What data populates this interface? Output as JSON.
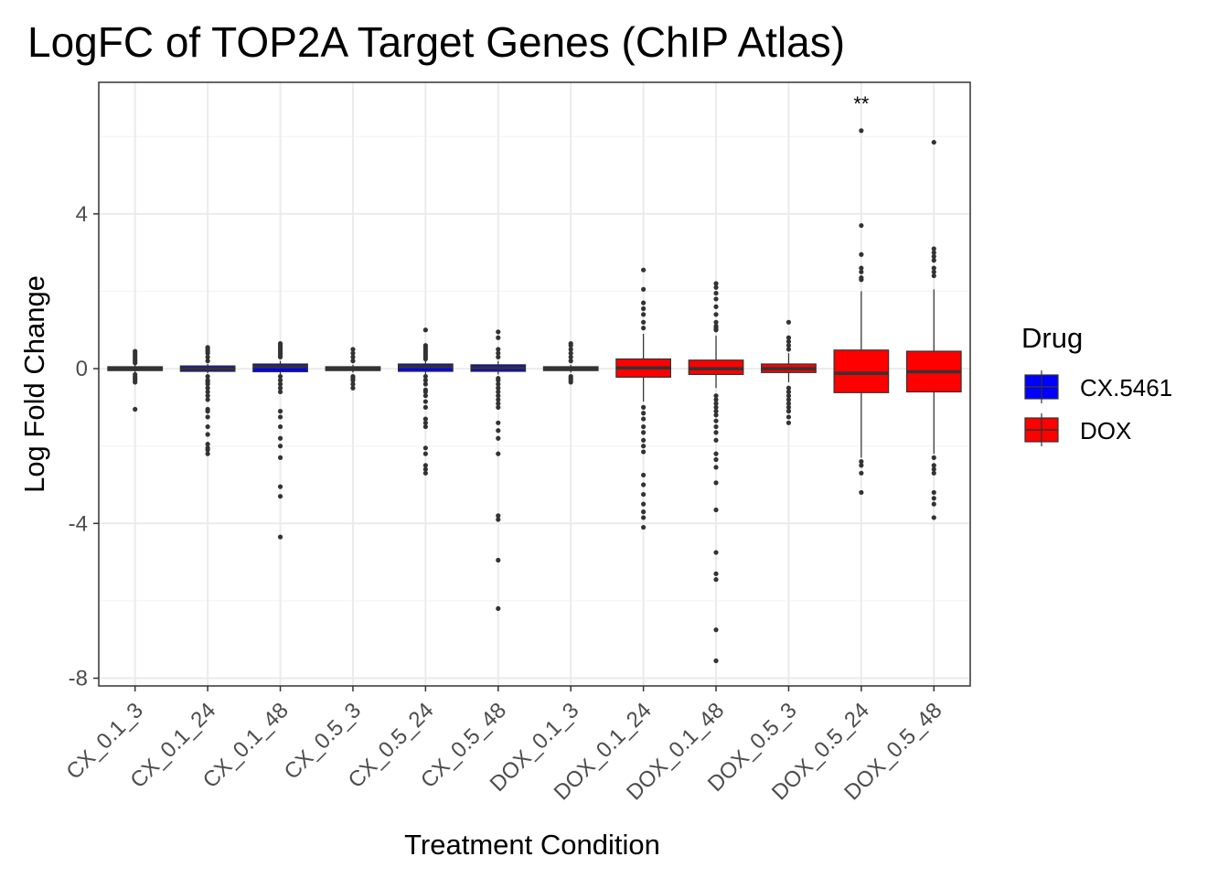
{
  "chart_data": {
    "type": "boxplot",
    "title": "LogFC of TOP2A Target Genes (ChIP Atlas)",
    "xlabel": "Treatment Condition",
    "ylabel": "Log Fold Change",
    "ylim": [
      -8.2,
      7.4
    ],
    "yticks": [
      4,
      0,
      -4,
      -8
    ],
    "yticks_labels": [
      "4",
      "0",
      "-4",
      "-8"
    ],
    "grid": true,
    "legend": {
      "title": "Drug",
      "position": "right",
      "items": [
        {
          "label": "CX.5461",
          "color": "#0000ff"
        },
        {
          "label": "DOX",
          "color": "#ff0000"
        }
      ]
    },
    "categories": [
      "CX_0.1_3",
      "CX_0.1_24",
      "CX_0.1_48",
      "CX_0.5_3",
      "CX_0.5_24",
      "CX_0.5_48",
      "DOX_0.1_3",
      "DOX_0.1_24",
      "DOX_0.1_48",
      "DOX_0.5_3",
      "DOX_0.5_24",
      "DOX_0.5_48"
    ],
    "boxes": [
      {
        "category": "CX_0.1_3",
        "drug": "CX.5461",
        "q1": -0.05,
        "median": 0.0,
        "q3": 0.05,
        "whisker_low": -0.1,
        "whisker_high": 0.1,
        "outliers": [
          0.45,
          0.4,
          0.35,
          0.3,
          0.25,
          0.2,
          0.15,
          -0.15,
          -0.2,
          -0.25,
          -0.3,
          -0.35,
          -1.05
        ]
      },
      {
        "category": "CX_0.1_24",
        "drug": "CX.5461",
        "q1": -0.07,
        "median": 0.0,
        "q3": 0.07,
        "whisker_low": -0.12,
        "whisker_high": 0.12,
        "outliers": [
          0.55,
          0.5,
          0.45,
          0.4,
          0.3,
          0.2,
          -0.2,
          -0.3,
          -0.35,
          -0.4,
          -0.5,
          -0.6,
          -0.7,
          -0.8,
          -1.05,
          -1.1,
          -1.25,
          -1.5,
          -1.7,
          -1.95,
          -2.05,
          -2.1,
          -2.2
        ]
      },
      {
        "category": "CX_0.1_48",
        "drug": "CX.5461",
        "q1": -0.08,
        "median": 0.05,
        "q3": 0.12,
        "whisker_low": -0.15,
        "whisker_high": 0.2,
        "outliers": [
          0.65,
          0.6,
          0.55,
          0.5,
          0.45,
          0.4,
          0.35,
          0.3,
          -0.2,
          -0.3,
          -0.4,
          -0.5,
          -0.6,
          -1.1,
          -1.25,
          -1.5,
          -1.8,
          -2.0,
          -2.3,
          -3.05,
          -3.3,
          -4.35
        ]
      },
      {
        "category": "CX_0.5_3",
        "drug": "CX.5461",
        "q1": -0.05,
        "median": 0.0,
        "q3": 0.05,
        "whisker_low": -0.1,
        "whisker_high": 0.1,
        "outliers": [
          0.5,
          0.4,
          0.3,
          0.2,
          -0.2,
          -0.25,
          -0.3,
          -0.4,
          -0.5
        ]
      },
      {
        "category": "CX_0.5_24",
        "drug": "CX.5461",
        "q1": -0.07,
        "median": 0.05,
        "q3": 0.12,
        "whisker_low": -0.15,
        "whisker_high": 0.2,
        "outliers": [
          1.0,
          0.6,
          0.55,
          0.5,
          0.45,
          0.4,
          0.35,
          0.3,
          0.25,
          -0.2,
          -0.3,
          -0.4,
          -0.55,
          -0.6,
          -0.7,
          -0.85,
          -1.0,
          -1.3,
          -1.4,
          -1.5,
          -2.05,
          -2.2,
          -2.5,
          -2.6,
          -2.7
        ]
      },
      {
        "category": "CX_0.5_48",
        "drug": "CX.5461",
        "q1": -0.07,
        "median": 0.02,
        "q3": 0.1,
        "whisker_low": -0.15,
        "whisker_high": 0.2,
        "outliers": [
          0.95,
          0.8,
          0.5,
          0.4,
          0.3,
          -0.25,
          -0.3,
          -0.4,
          -0.5,
          -0.6,
          -0.7,
          -0.8,
          -0.9,
          -1.0,
          -1.4,
          -1.6,
          -1.8,
          -2.2,
          -3.8,
          -3.9,
          -4.95,
          -6.2
        ]
      },
      {
        "category": "DOX_0.1_3",
        "drug": "DOX",
        "q1": -0.05,
        "median": 0.0,
        "q3": 0.05,
        "whisker_low": -0.1,
        "whisker_high": 0.1,
        "outliers": [
          0.65,
          0.6,
          0.5,
          0.4,
          0.3,
          0.2,
          -0.2,
          -0.25,
          -0.3,
          -0.35
        ]
      },
      {
        "category": "DOX_0.1_24",
        "drug": "DOX",
        "q1": -0.22,
        "median": 0.02,
        "q3": 0.25,
        "whisker_low": -0.85,
        "whisker_high": 0.9,
        "outliers": [
          2.55,
          2.05,
          1.7,
          1.55,
          1.4,
          1.2,
          1.05,
          -1.0,
          -1.15,
          -1.3,
          -1.5,
          -1.65,
          -1.85,
          -2.0,
          -2.15,
          -2.75,
          -3.0,
          -3.25,
          -3.5,
          -3.7,
          -3.85,
          -4.1
        ]
      },
      {
        "category": "DOX_0.1_48",
        "drug": "DOX",
        "q1": -0.15,
        "median": 0.0,
        "q3": 0.22,
        "whisker_low": -0.5,
        "whisker_high": 0.85,
        "outliers": [
          2.2,
          2.1,
          1.95,
          1.8,
          1.6,
          1.4,
          1.2,
          1.1,
          1.05,
          1.0,
          -0.7,
          -0.8,
          -0.9,
          -1.0,
          -1.1,
          -1.2,
          -1.35,
          -1.5,
          -1.65,
          -1.85,
          -2.2,
          -2.35,
          -2.55,
          -2.95,
          -3.65,
          -4.75,
          -5.3,
          -5.45,
          -6.75,
          -7.55
        ]
      },
      {
        "category": "DOX_0.5_3",
        "drug": "DOX",
        "q1": -0.1,
        "median": 0.0,
        "q3": 0.12,
        "whisker_low": -0.35,
        "whisker_high": 0.4,
        "outliers": [
          1.2,
          0.8,
          0.7,
          0.6,
          0.5,
          -0.5,
          -0.6,
          -0.7,
          -0.8,
          -0.9,
          -1.0,
          -1.1,
          -1.25,
          -1.4
        ]
      },
      {
        "category": "DOX_0.5_24",
        "drug": "DOX",
        "q1": -0.62,
        "median": -0.12,
        "q3": 0.48,
        "whisker_low": -2.3,
        "whisker_high": 2.0,
        "outliers": [
          6.15,
          3.7,
          2.95,
          2.6,
          2.5,
          2.35,
          2.3,
          -2.4,
          -2.5,
          -2.7,
          -3.2
        ],
        "annotation": "**"
      },
      {
        "category": "DOX_0.5_48",
        "drug": "DOX",
        "q1": -0.6,
        "median": -0.08,
        "q3": 0.45,
        "whisker_low": -2.2,
        "whisker_high": 2.05,
        "outliers": [
          5.85,
          3.1,
          3.0,
          2.9,
          2.8,
          2.6,
          2.5,
          2.4,
          -2.3,
          -2.5,
          -2.6,
          -2.7,
          -3.2,
          -3.35,
          -3.5,
          -3.85
        ]
      }
    ]
  }
}
